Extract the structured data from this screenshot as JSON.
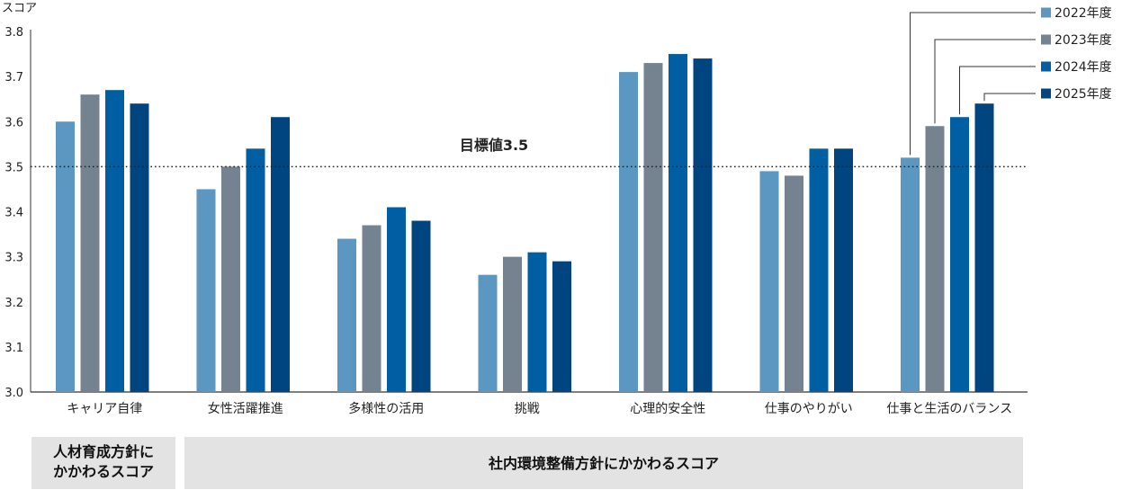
{
  "chart_data": {
    "type": "bar",
    "ylabel": "スコア",
    "ylim": [
      3.0,
      3.8
    ],
    "yticks": [
      "3.0",
      "3.1",
      "3.2",
      "3.3",
      "3.4",
      "3.5",
      "3.6",
      "3.7",
      "3.8"
    ],
    "grid": false,
    "legend_position": "top-right",
    "categories": [
      "キャリア自律",
      "女性活躍推進",
      "多様性の活用",
      "挑戦",
      "心理的安全性",
      "仕事のやりがい",
      "仕事と生活のバランス"
    ],
    "series": [
      {
        "name": "2022年度",
        "color": "#5b97c0",
        "values": [
          3.6,
          3.45,
          3.34,
          3.26,
          3.71,
          3.49,
          3.52
        ]
      },
      {
        "name": "2023年度",
        "color": "#75828f",
        "values": [
          3.66,
          3.5,
          3.37,
          3.3,
          3.73,
          3.48,
          3.59
        ]
      },
      {
        "name": "2024年度",
        "color": "#005ea2",
        "values": [
          3.67,
          3.54,
          3.41,
          3.31,
          3.75,
          3.54,
          3.61
        ]
      },
      {
        "name": "2025年度",
        "color": "#004480",
        "values": [
          3.64,
          3.61,
          3.38,
          3.29,
          3.74,
          3.54,
          3.64
        ]
      }
    ],
    "target": {
      "label": "目標値3.5",
      "value": 3.5
    },
    "groups": [
      {
        "label_lines": [
          "人材育成方針に",
          "かかわるスコア"
        ],
        "categories": [
          "キャリア自律"
        ]
      },
      {
        "label_lines": [
          "社内環境整備方針にかかわるスコア"
        ],
        "categories": [
          "女性活躍推進",
          "多様性の活用",
          "挑戦",
          "心理的安全性",
          "仕事のやりがい",
          "仕事と生活のバランス"
        ]
      }
    ]
  }
}
